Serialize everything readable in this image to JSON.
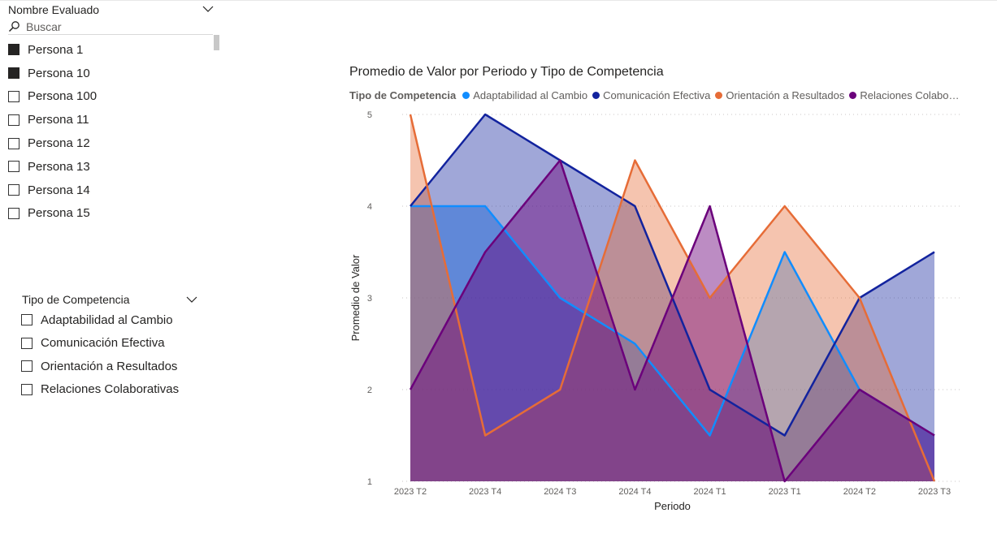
{
  "slicer_persona": {
    "title": "Nombre Evaluado",
    "search_placeholder": "Buscar",
    "items": [
      {
        "label": "Persona 1",
        "checked": true
      },
      {
        "label": "Persona 10",
        "checked": true
      },
      {
        "label": "Persona 100",
        "checked": false
      },
      {
        "label": "Persona 11",
        "checked": false
      },
      {
        "label": "Persona 12",
        "checked": false
      },
      {
        "label": "Persona 13",
        "checked": false
      },
      {
        "label": "Persona 14",
        "checked": false
      },
      {
        "label": "Persona 15",
        "checked": false
      }
    ]
  },
  "slicer_competencia": {
    "title": "Tipo de Competencia",
    "items": [
      {
        "label": "Adaptabilidad al Cambio",
        "checked": false
      },
      {
        "label": "Comunicación Efectiva",
        "checked": false
      },
      {
        "label": "Orientación a Resultados",
        "checked": false
      },
      {
        "label": "Relaciones Colaborativas",
        "checked": false
      }
    ]
  },
  "chart_data": {
    "type": "area",
    "title": "Promedio de Valor por Periodo y Tipo de Competencia",
    "legend_title": "Tipo de Competencia",
    "legend_position": "top-left",
    "xlabel": "Periodo",
    "ylabel": "Promedio de Valor",
    "ylim": [
      1,
      5
    ],
    "yticks": [
      1,
      2,
      3,
      4,
      5
    ],
    "grid": true,
    "categories": [
      "2023 T2",
      "2023 T4",
      "2024 T3",
      "2024 T4",
      "2024 T1",
      "2023 T1",
      "2024 T2",
      "2023 T3"
    ],
    "series": [
      {
        "name": "Adaptabilidad al Cambio",
        "legend_label": "Adaptabilidad al Cambio",
        "color": "#118DFF",
        "values": [
          4,
          4,
          3,
          2.5,
          1.5,
          3.5,
          2,
          1.5
        ]
      },
      {
        "name": "Comunicación Efectiva",
        "legend_label": "Comunicación Efectiva",
        "color": "#12239E",
        "values": [
          4,
          5,
          4.5,
          4,
          2,
          1.5,
          3,
          3.5
        ]
      },
      {
        "name": "Orientación a Resultados",
        "legend_label": "Orientación a Resultados",
        "color": "#E66C37",
        "values": [
          5,
          1.5,
          2,
          4.5,
          3,
          4,
          3,
          1
        ]
      },
      {
        "name": "Relaciones Colaborativas",
        "legend_label": "Relaciones Colaborat...",
        "color": "#6B007B",
        "values": [
          2,
          3.5,
          4.5,
          2,
          4,
          1,
          2,
          1.5
        ]
      }
    ]
  }
}
